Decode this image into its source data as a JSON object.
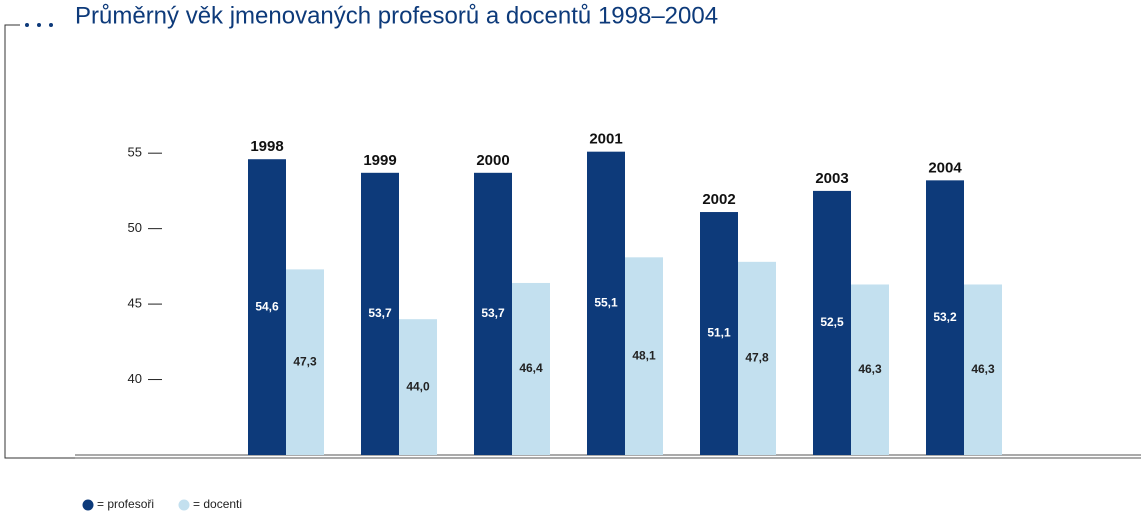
{
  "chart_data": {
    "type": "bar",
    "title": "Průměrný věk jmenovaných profesorů a docentů 1998–2004",
    "categories": [
      "1998",
      "1999",
      "2000",
      "2001",
      "2002",
      "2003",
      "2004"
    ],
    "series": [
      {
        "name": "= profesoři",
        "color": "#0d3a7a",
        "values": [
          54.6,
          53.7,
          53.7,
          55.1,
          51.1,
          52.5,
          53.2
        ],
        "value_labels": [
          "54,6",
          "53,7",
          "53,7",
          "55,1",
          "51,1",
          "52,5",
          "53,2"
        ]
      },
      {
        "name": "= docenti",
        "color": "#c3e0ef",
        "values": [
          47.3,
          44.0,
          46.4,
          48.1,
          47.8,
          46.3,
          46.3
        ],
        "value_labels": [
          "47,3",
          "44,0",
          "46,4",
          "48,1",
          "47,8",
          "46,3",
          "46,3"
        ]
      }
    ],
    "ylim": [
      35,
      57
    ],
    "yticks": [
      40,
      45,
      50,
      55
    ]
  }
}
